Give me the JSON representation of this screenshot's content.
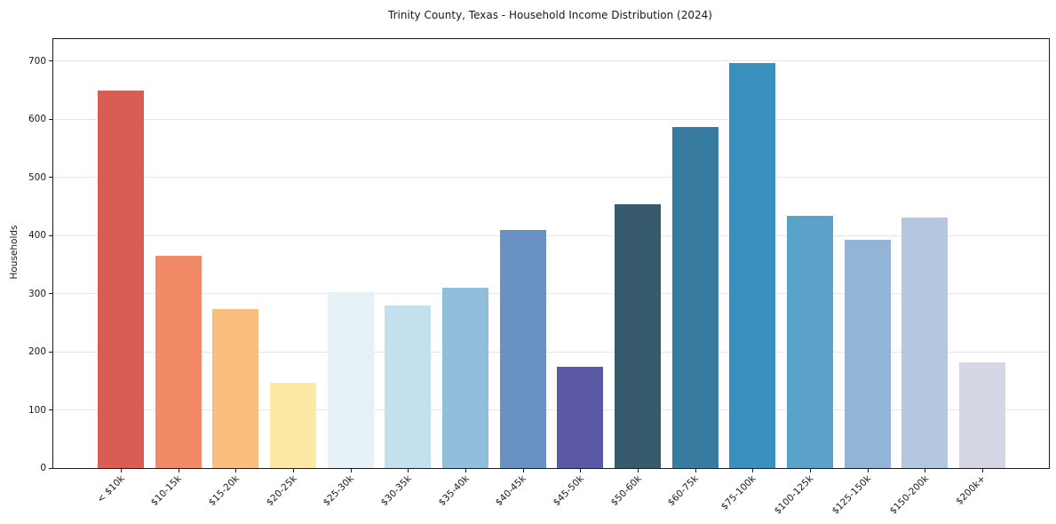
{
  "title": "Trinity County, Texas - Household Income Distribution (2024)",
  "chart_data": {
    "type": "bar",
    "title": "Trinity County, Texas - Household Income Distribution (2024)",
    "xlabel": "",
    "ylabel": "Households",
    "categories": [
      "< $10k",
      "$10-15k",
      "$15-20k",
      "$20-25k",
      "$25-30k",
      "$30-35k",
      "$35-40k",
      "$40-45k",
      "$45-50k",
      "$50-60k",
      "$60-75k",
      "$75-100k",
      "$100-125k",
      "$125-150k",
      "$150-200k",
      "$200k+"
    ],
    "values": [
      649,
      365,
      273,
      146,
      303,
      279,
      310,
      409,
      174,
      454,
      586,
      697,
      433,
      392,
      430,
      181
    ],
    "bar_colors": [
      "#d95d55",
      "#f28a68",
      "#fbbe7e",
      "#fde8a4",
      "#e5f1f5",
      "#c3e1ec",
      "#91bedd",
      "#6a91c4",
      "#5b59a6",
      "#375a6c",
      "#377ba0",
      "#3990bf",
      "#5aa2c8",
      "#91b4d7",
      "#b5c7e0",
      "#d6d7e4"
    ],
    "yticks": [
      0,
      100,
      200,
      300,
      400,
      500,
      600,
      700
    ],
    "ylim": [
      0,
      737.5
    ],
    "grid": "horizontal-on",
    "gridline_color": "#e7e7e7",
    "legend_position": "none",
    "background_color": "#ffffff"
  }
}
